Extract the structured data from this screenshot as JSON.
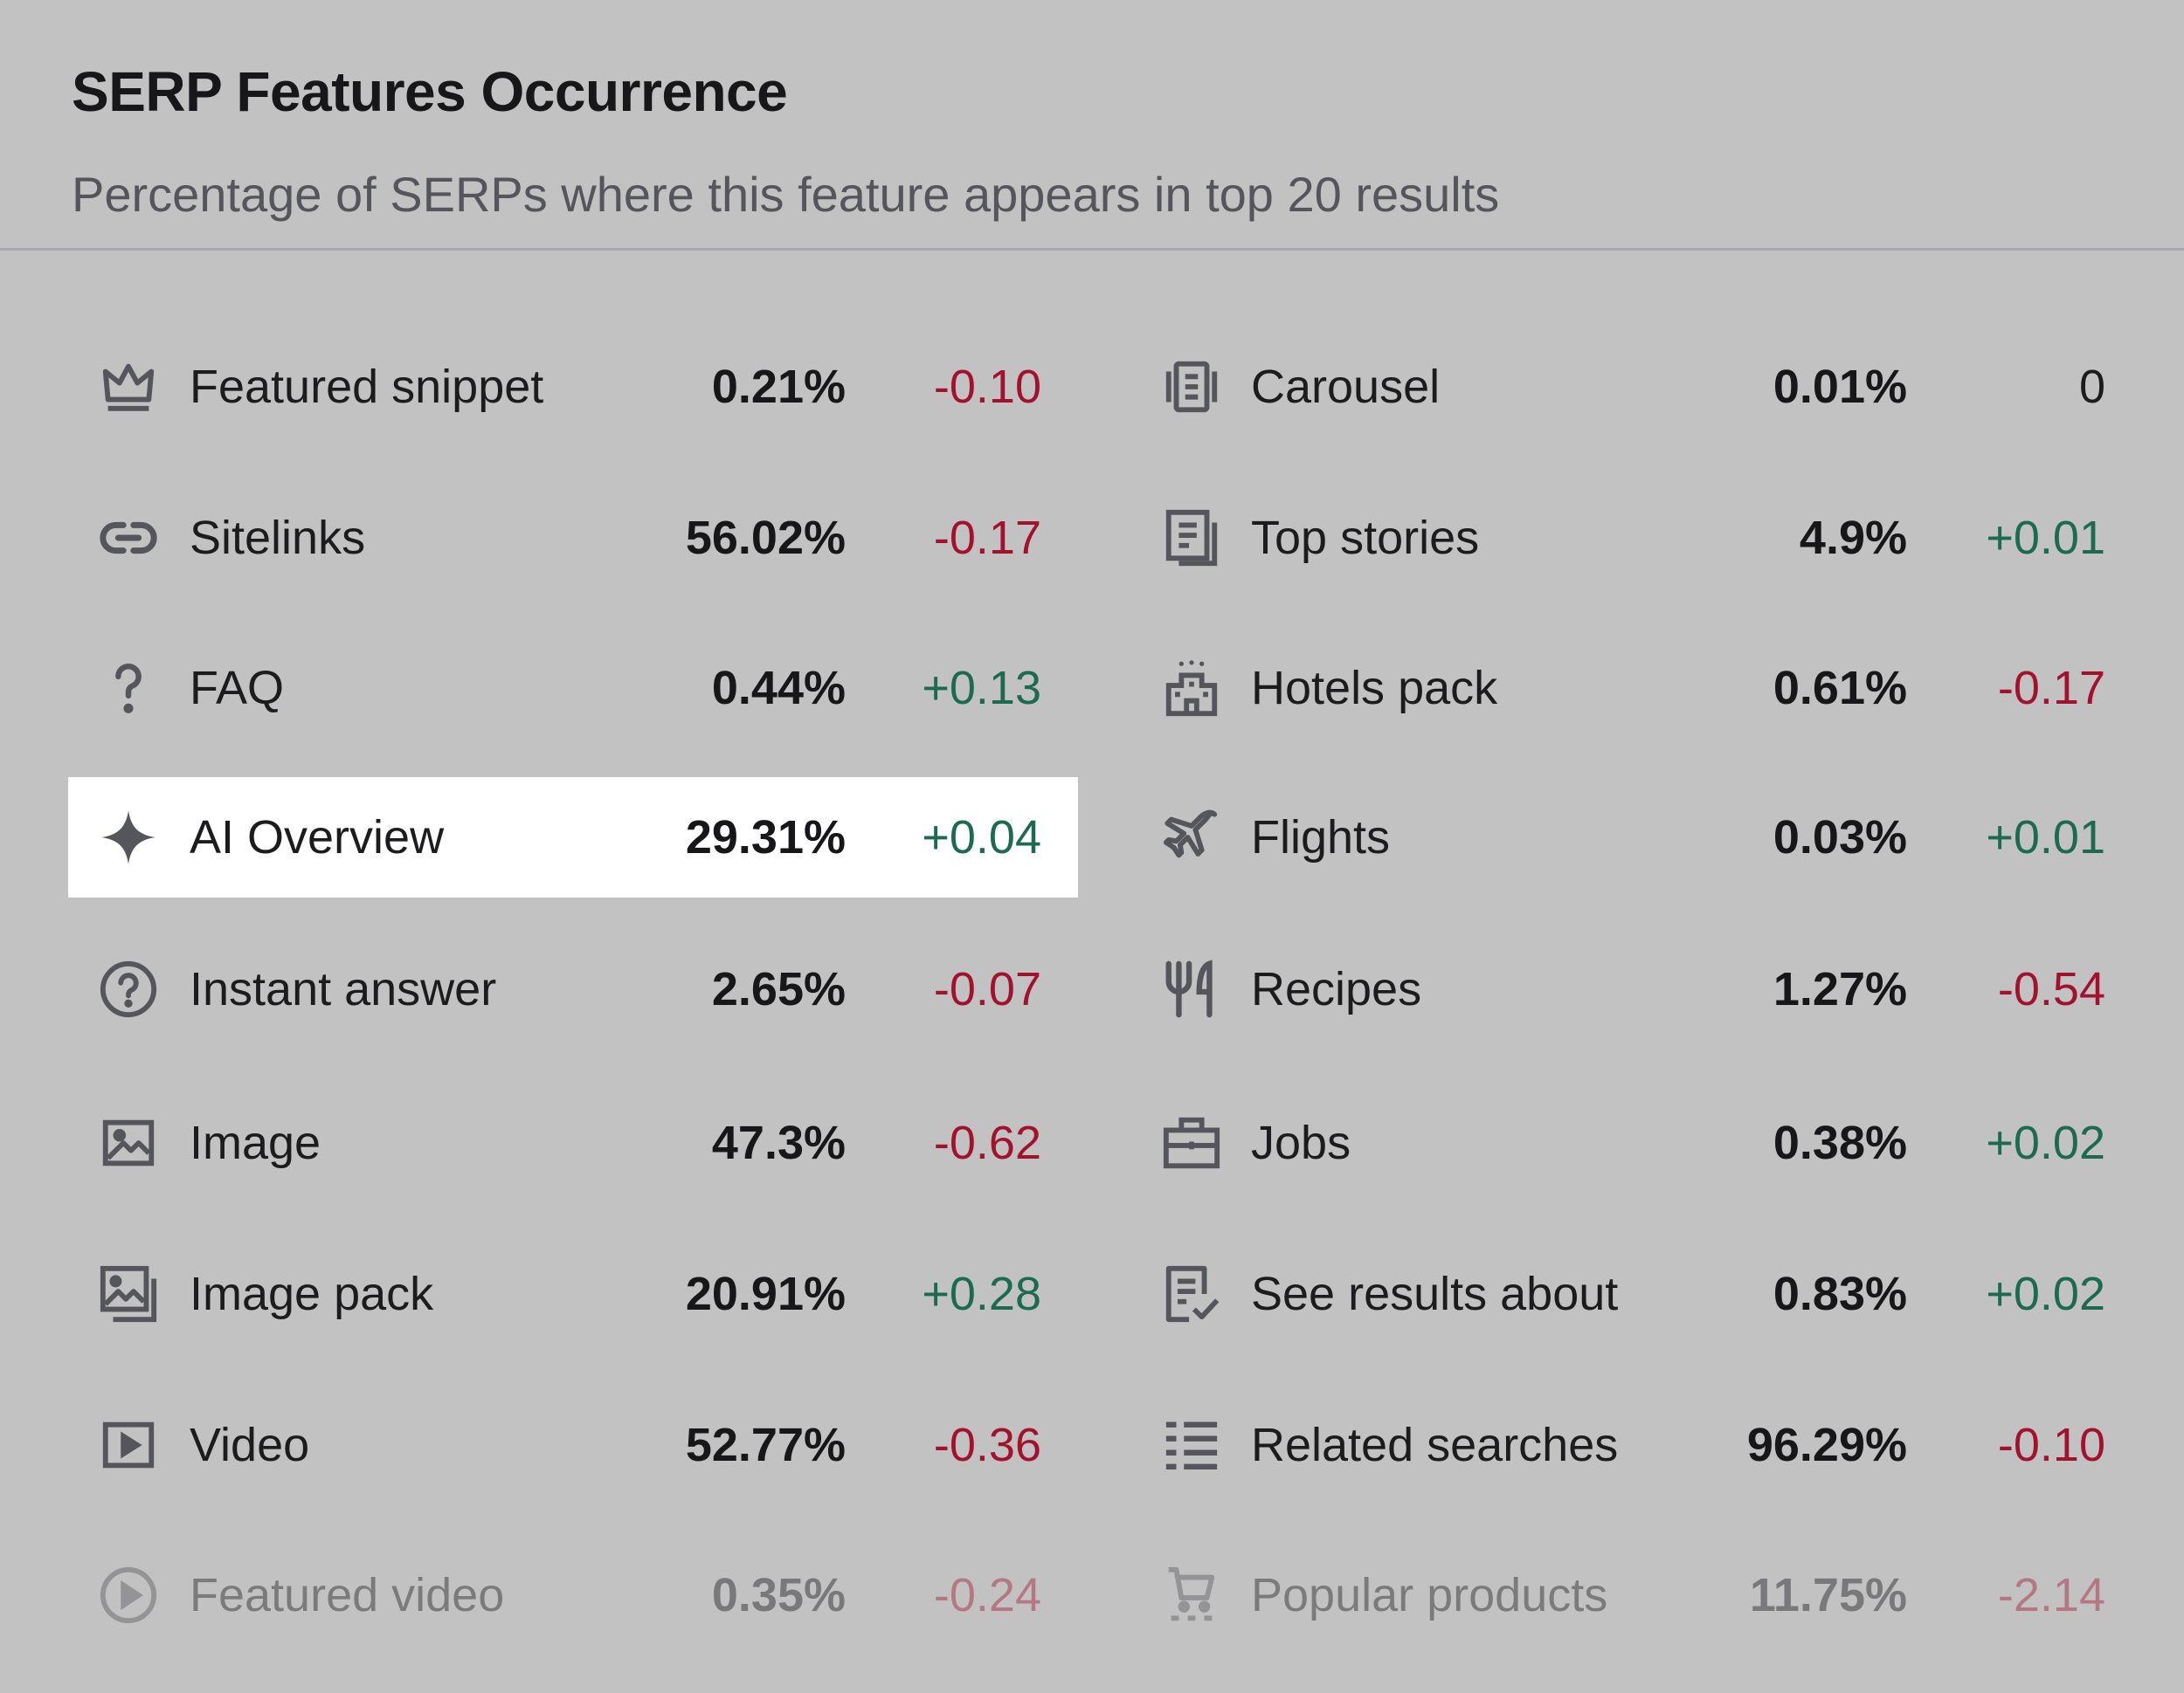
{
  "header": {
    "title": "SERP Features Occurrence",
    "subtitle": "Percentage of SERPs where this feature appears in top 20 results"
  },
  "colors": {
    "background": "#c2c2c2",
    "highlight": "#ffffff",
    "negative": "#a3122d",
    "positive": "#1c6a4f",
    "icon": "#55555c"
  },
  "left": [
    {
      "label": "Featured snippet",
      "percent": "0.21%",
      "change": "-0.10",
      "icon": "crown-icon"
    },
    {
      "label": "Sitelinks",
      "percent": "56.02%",
      "change": "-0.17",
      "icon": "link-icon"
    },
    {
      "label": "FAQ",
      "percent": "0.44%",
      "change": "+0.13",
      "icon": "question-icon"
    },
    {
      "label": "AI Overview",
      "percent": "29.31%",
      "change": "+0.04",
      "icon": "sparkle-icon",
      "highlighted": true
    },
    {
      "label": "Instant answer",
      "percent": "2.65%",
      "change": "-0.07",
      "icon": "question-circle-icon"
    },
    {
      "label": "Image",
      "percent": "47.3%",
      "change": "-0.62",
      "icon": "image-icon"
    },
    {
      "label": "Image pack",
      "percent": "20.91%",
      "change": "+0.28",
      "icon": "image-pack-icon"
    },
    {
      "label": "Video",
      "percent": "52.77%",
      "change": "-0.36",
      "icon": "video-icon"
    },
    {
      "label": "Featured video",
      "percent": "0.35%",
      "change": "-0.24",
      "icon": "play-circle-icon",
      "faded": true
    }
  ],
  "right": [
    {
      "label": "Carousel",
      "percent": "0.01%",
      "change": "0",
      "icon": "carousel-icon"
    },
    {
      "label": "Top stories",
      "percent": "4.9%",
      "change": "+0.01",
      "icon": "news-icon"
    },
    {
      "label": "Hotels pack",
      "percent": "0.61%",
      "change": "-0.17",
      "icon": "hotel-icon"
    },
    {
      "label": "Flights",
      "percent": "0.03%",
      "change": "+0.01",
      "icon": "plane-icon"
    },
    {
      "label": "Recipes",
      "percent": "1.27%",
      "change": "-0.54",
      "icon": "fork-knife-icon"
    },
    {
      "label": "Jobs",
      "percent": "0.38%",
      "change": "+0.02",
      "icon": "briefcase-icon"
    },
    {
      "label": "See results about",
      "percent": "0.83%",
      "change": "+0.02",
      "icon": "document-check-icon"
    },
    {
      "label": "Related searches",
      "percent": "96.29%",
      "change": "-0.10",
      "icon": "list-icon"
    },
    {
      "label": "Popular products",
      "percent": "11.75%",
      "change": "-2.14",
      "icon": "cart-icon",
      "faded": true
    }
  ]
}
